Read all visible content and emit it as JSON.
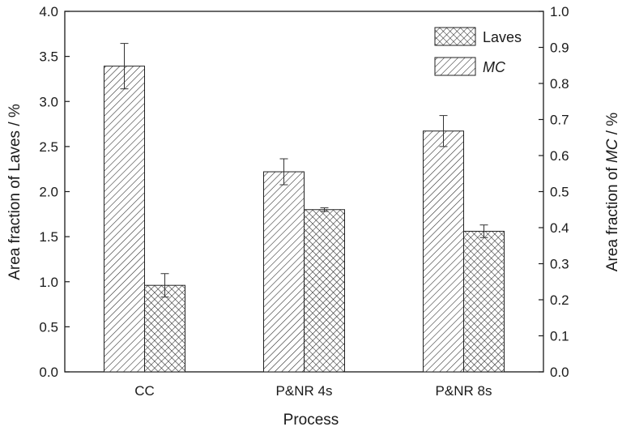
{
  "chart_data": {
    "type": "bar",
    "categories": [
      "CC",
      "P&NR 4s",
      "P&NR 8s"
    ],
    "xlabel": "Process",
    "ylabel_left": "Area fraction of Laves / %",
    "ylabel_right_prefix": "Area fraction of ",
    "ylabel_right_italic": "MC",
    "ylabel_right_suffix": " / %",
    "ylim_left": [
      0.0,
      4.0
    ],
    "ylim_right": [
      0.0,
      1.0
    ],
    "yticks_left": [
      "0.0",
      "0.5",
      "1.0",
      "1.5",
      "2.0",
      "2.5",
      "3.0",
      "3.5",
      "4.0"
    ],
    "yticks_right": [
      "0.0",
      "0.1",
      "0.2",
      "0.3",
      "0.4",
      "0.5",
      "0.6",
      "0.7",
      "0.8",
      "0.9",
      "1.0"
    ],
    "grid": false,
    "legend_position": "top-right",
    "series": [
      {
        "name": "MC",
        "name_italic": true,
        "axis": "right",
        "pattern": "diagonal-hatch",
        "values": [
          0.848,
          0.555,
          0.668
        ],
        "errors": [
          0.063,
          0.036,
          0.043
        ]
      },
      {
        "name": "Laves",
        "name_italic": false,
        "axis": "left",
        "pattern": "crosshatch",
        "values": [
          0.96,
          1.8,
          1.56
        ],
        "errors": [
          0.13,
          0.02,
          0.07
        ]
      }
    ]
  }
}
